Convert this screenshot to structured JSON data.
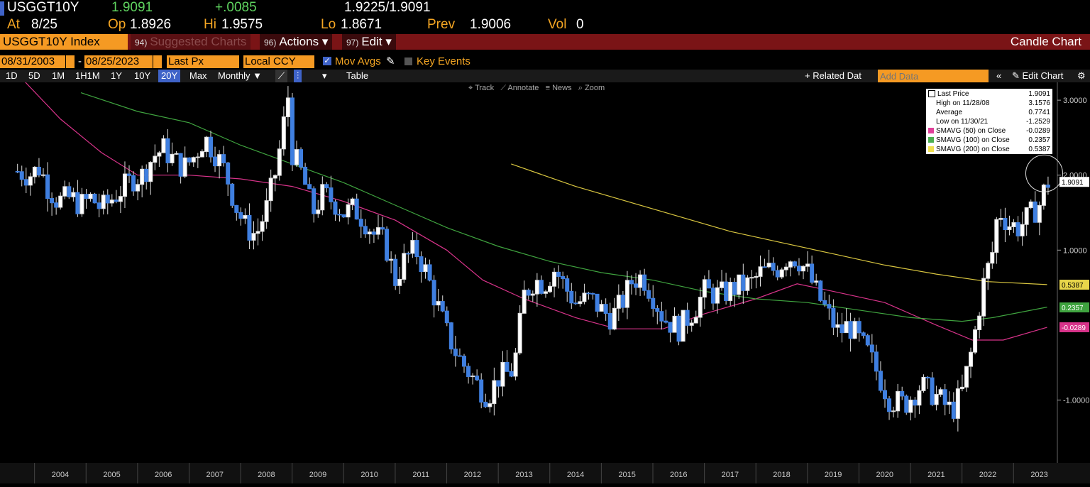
{
  "quote": {
    "ticker": "USGGT10Y",
    "last": "1.9091",
    "change": "+.0085",
    "bidask": "1.9225/1.9091",
    "at_label": "At",
    "at_value": "8/25",
    "op_label": "Op",
    "op_value": "1.8926",
    "hi_label": "Hi",
    "hi_value": "1.9575",
    "lo_label": "Lo",
    "lo_value": "1.8671",
    "prev_label": "Prev",
    "prev_value": "1.9006",
    "vol_label": "Vol",
    "vol_value": "0"
  },
  "menubar": {
    "security": "USGGT10Y Index",
    "suggested_num": "94)",
    "suggested": "Suggested Charts",
    "actions_num": "96)",
    "actions": "Actions ▾",
    "edit_num": "97)",
    "edit": "Edit ▾",
    "chart_type": "Candle Chart"
  },
  "controls": {
    "start_date": "08/31/2003",
    "end_date": "08/25/2023",
    "price_field": "Last Px",
    "currency": "Local CCY",
    "mov_avgs": "Mov Avgs",
    "key_events": "Key Events",
    "checkbox_icon": "checkbox-checked-icon"
  },
  "toolbar": {
    "ranges": [
      "1D",
      "5D",
      "1M",
      "1H1M",
      "1Y",
      "10Y",
      "20Y",
      "Max"
    ],
    "selected_range": "20Y",
    "period": "Monthly ▼",
    "table": "Table",
    "related": "+ Related Dat",
    "add_data_placeholder": "Add Data",
    "edit_chart": "Edit Chart",
    "subtools": [
      "Track",
      "Annotate",
      "News",
      "Zoom"
    ]
  },
  "legend": [
    {
      "label": "Last Price",
      "value": "1.9091",
      "color": "#ffffff"
    },
    {
      "label": "High on 11/28/08",
      "value": "3.1576",
      "color": "none"
    },
    {
      "label": "Average",
      "value": "0.7741",
      "color": "none"
    },
    {
      "label": "Low on 11/30/21",
      "value": "-1.2529",
      "color": "none"
    },
    {
      "label": "SMAVG (50)  on Close",
      "value": "-0.0289",
      "color": "#e0409a"
    },
    {
      "label": "SMAVG (100)  on Close",
      "value": "0.2357",
      "color": "#4caf50"
    },
    {
      "label": "SMAVG (200)  on Close",
      "value": "0.5387",
      "color": "#f0e050"
    }
  ],
  "chart_data": {
    "type": "candlestick",
    "ylim": [
      -1.8,
      3.2
    ],
    "yticks": [
      "3.0000",
      "2.0000",
      "1.0000",
      "-1.0000"
    ],
    "ytick_values": [
      3.0,
      2.0,
      1.0,
      -1.0
    ],
    "xticks": [
      "2004",
      "2005",
      "2006",
      "2007",
      "2008",
      "2009",
      "2010",
      "2011",
      "2012",
      "2013",
      "2014",
      "2015",
      "2016",
      "2017",
      "2018",
      "2019",
      "2020",
      "2021",
      "2022",
      "2023"
    ],
    "x_start": 2003.67,
    "x_end": 2023.65,
    "close_path": [
      [
        2003.67,
        2.05
      ],
      [
        2003.9,
        2.0
      ],
      [
        2004.1,
        2.1
      ],
      [
        2004.25,
        1.85
      ],
      [
        2004.45,
        1.65
      ],
      [
        2004.7,
        1.7
      ],
      [
        2004.9,
        1.6
      ],
      [
        2005.1,
        1.7
      ],
      [
        2005.3,
        1.55
      ],
      [
        2005.6,
        1.75
      ],
      [
        2005.9,
        1.95
      ],
      [
        2006.1,
        2.0
      ],
      [
        2006.3,
        2.25
      ],
      [
        2006.5,
        2.35
      ],
      [
        2006.7,
        2.2
      ],
      [
        2006.9,
        2.1
      ],
      [
        2007.1,
        2.25
      ],
      [
        2007.3,
        2.5
      ],
      [
        2007.5,
        2.3
      ],
      [
        2007.7,
        2.05
      ],
      [
        2007.9,
        1.6
      ],
      [
        2008.1,
        1.3
      ],
      [
        2008.3,
        1.2
      ],
      [
        2008.5,
        1.55
      ],
      [
        2008.7,
        2.1
      ],
      [
        2008.92,
        3.05
      ],
      [
        2009.0,
        2.3
      ],
      [
        2009.2,
        2.0
      ],
      [
        2009.4,
        1.5
      ],
      [
        2009.6,
        1.75
      ],
      [
        2009.8,
        1.65
      ],
      [
        2010.0,
        1.5
      ],
      [
        2010.2,
        1.55
      ],
      [
        2010.4,
        1.4
      ],
      [
        2010.6,
        1.2
      ],
      [
        2010.8,
        1.1
      ],
      [
        2011.0,
        0.6
      ],
      [
        2011.2,
        0.9
      ],
      [
        2011.4,
        1.0
      ],
      [
        2011.6,
        0.7
      ],
      [
        2011.8,
        0.3
      ],
      [
        2012.0,
        -0.1
      ],
      [
        2012.2,
        -0.4
      ],
      [
        2012.4,
        -0.6
      ],
      [
        2012.6,
        -0.8
      ],
      [
        2012.8,
        -0.95
      ],
      [
        2013.0,
        -0.7
      ],
      [
        2013.3,
        -0.6
      ],
      [
        2013.5,
        0.4
      ],
      [
        2013.7,
        0.6
      ],
      [
        2013.9,
        0.55
      ],
      [
        2014.1,
        0.75
      ],
      [
        2014.3,
        0.5
      ],
      [
        2014.5,
        0.3
      ],
      [
        2014.8,
        0.35
      ],
      [
        2015.0,
        0.2
      ],
      [
        2015.2,
        0.1
      ],
      [
        2015.4,
        0.3
      ],
      [
        2015.6,
        0.6
      ],
      [
        2015.8,
        0.65
      ],
      [
        2016.0,
        0.4
      ],
      [
        2016.2,
        0.1
      ],
      [
        2016.5,
        -0.05
      ],
      [
        2016.8,
        0.2
      ],
      [
        2017.0,
        0.45
      ],
      [
        2017.3,
        0.4
      ],
      [
        2017.6,
        0.5
      ],
      [
        2017.9,
        0.55
      ],
      [
        2018.1,
        0.7
      ],
      [
        2018.4,
        0.75
      ],
      [
        2018.6,
        0.9
      ],
      [
        2018.8,
        0.9
      ],
      [
        2019.0,
        0.7
      ],
      [
        2019.2,
        0.4
      ],
      [
        2019.4,
        0.15
      ],
      [
        2019.6,
        -0.1
      ],
      [
        2019.8,
        0.0
      ],
      [
        2020.0,
        -0.2
      ],
      [
        2020.2,
        -0.4
      ],
      [
        2020.4,
        -0.7
      ],
      [
        2020.6,
        -1.0
      ],
      [
        2020.9,
        -1.05
      ],
      [
        2021.2,
        -0.8
      ],
      [
        2021.5,
        -0.95
      ],
      [
        2021.8,
        -1.15
      ],
      [
        2022.0,
        -0.9
      ],
      [
        2022.2,
        -0.3
      ],
      [
        2022.4,
        0.5
      ],
      [
        2022.6,
        1.0
      ],
      [
        2022.7,
        1.55
      ],
      [
        2022.9,
        1.35
      ],
      [
        2023.1,
        1.3
      ],
      [
        2023.3,
        1.45
      ],
      [
        2023.5,
        1.6
      ],
      [
        2023.65,
        1.91
      ]
    ],
    "series": [
      {
        "name": "SMAVG (50)",
        "color": "#d8338a",
        "points": [
          [
            2003.67,
            3.35
          ],
          [
            2004.5,
            2.75
          ],
          [
            2005.3,
            2.3
          ],
          [
            2006.0,
            2.0
          ],
          [
            2007.0,
            2.0
          ],
          [
            2008.0,
            1.95
          ],
          [
            2009.0,
            1.85
          ],
          [
            2010.0,
            1.65
          ],
          [
            2011.0,
            1.4
          ],
          [
            2012.0,
            1.0
          ],
          [
            2012.7,
            0.6
          ],
          [
            2013.5,
            0.35
          ],
          [
            2014.5,
            0.1
          ],
          [
            2015.3,
            -0.05
          ],
          [
            2016.2,
            -0.05
          ],
          [
            2017.0,
            0.15
          ],
          [
            2018.0,
            0.35
          ],
          [
            2018.8,
            0.55
          ],
          [
            2019.5,
            0.45
          ],
          [
            2020.5,
            0.3
          ],
          [
            2021.5,
            0.0
          ],
          [
            2022.2,
            -0.2
          ],
          [
            2022.8,
            -0.2
          ],
          [
            2023.65,
            -0.03
          ]
        ]
      },
      {
        "name": "SMAVG (100)",
        "color": "#3fa33f",
        "points": [
          [
            2004.9,
            3.1
          ],
          [
            2006.0,
            2.85
          ],
          [
            2007.0,
            2.7
          ],
          [
            2008.0,
            2.4
          ],
          [
            2009.0,
            2.15
          ],
          [
            2010.0,
            1.9
          ],
          [
            2011.0,
            1.6
          ],
          [
            2012.0,
            1.3
          ],
          [
            2013.0,
            1.05
          ],
          [
            2014.0,
            0.85
          ],
          [
            2015.0,
            0.7
          ],
          [
            2016.0,
            0.6
          ],
          [
            2017.0,
            0.45
          ],
          [
            2018.0,
            0.35
          ],
          [
            2019.0,
            0.3
          ],
          [
            2020.0,
            0.2
          ],
          [
            2021.0,
            0.1
          ],
          [
            2022.0,
            0.05
          ],
          [
            2022.6,
            0.1
          ],
          [
            2023.65,
            0.24
          ]
        ]
      },
      {
        "name": "SMAVG (200)",
        "color": "#d9c640",
        "points": [
          [
            2013.25,
            2.15
          ],
          [
            2014.5,
            1.85
          ],
          [
            2015.5,
            1.65
          ],
          [
            2016.5,
            1.45
          ],
          [
            2017.5,
            1.25
          ],
          [
            2018.5,
            1.1
          ],
          [
            2019.5,
            0.95
          ],
          [
            2020.5,
            0.8
          ],
          [
            2021.5,
            0.68
          ],
          [
            2022.5,
            0.58
          ],
          [
            2023.65,
            0.54
          ]
        ]
      }
    ],
    "last_price_label": "1.9091",
    "sma200_label": "0.5387",
    "sma100_label": "0.2357",
    "sma50_label": "-0.0289"
  }
}
